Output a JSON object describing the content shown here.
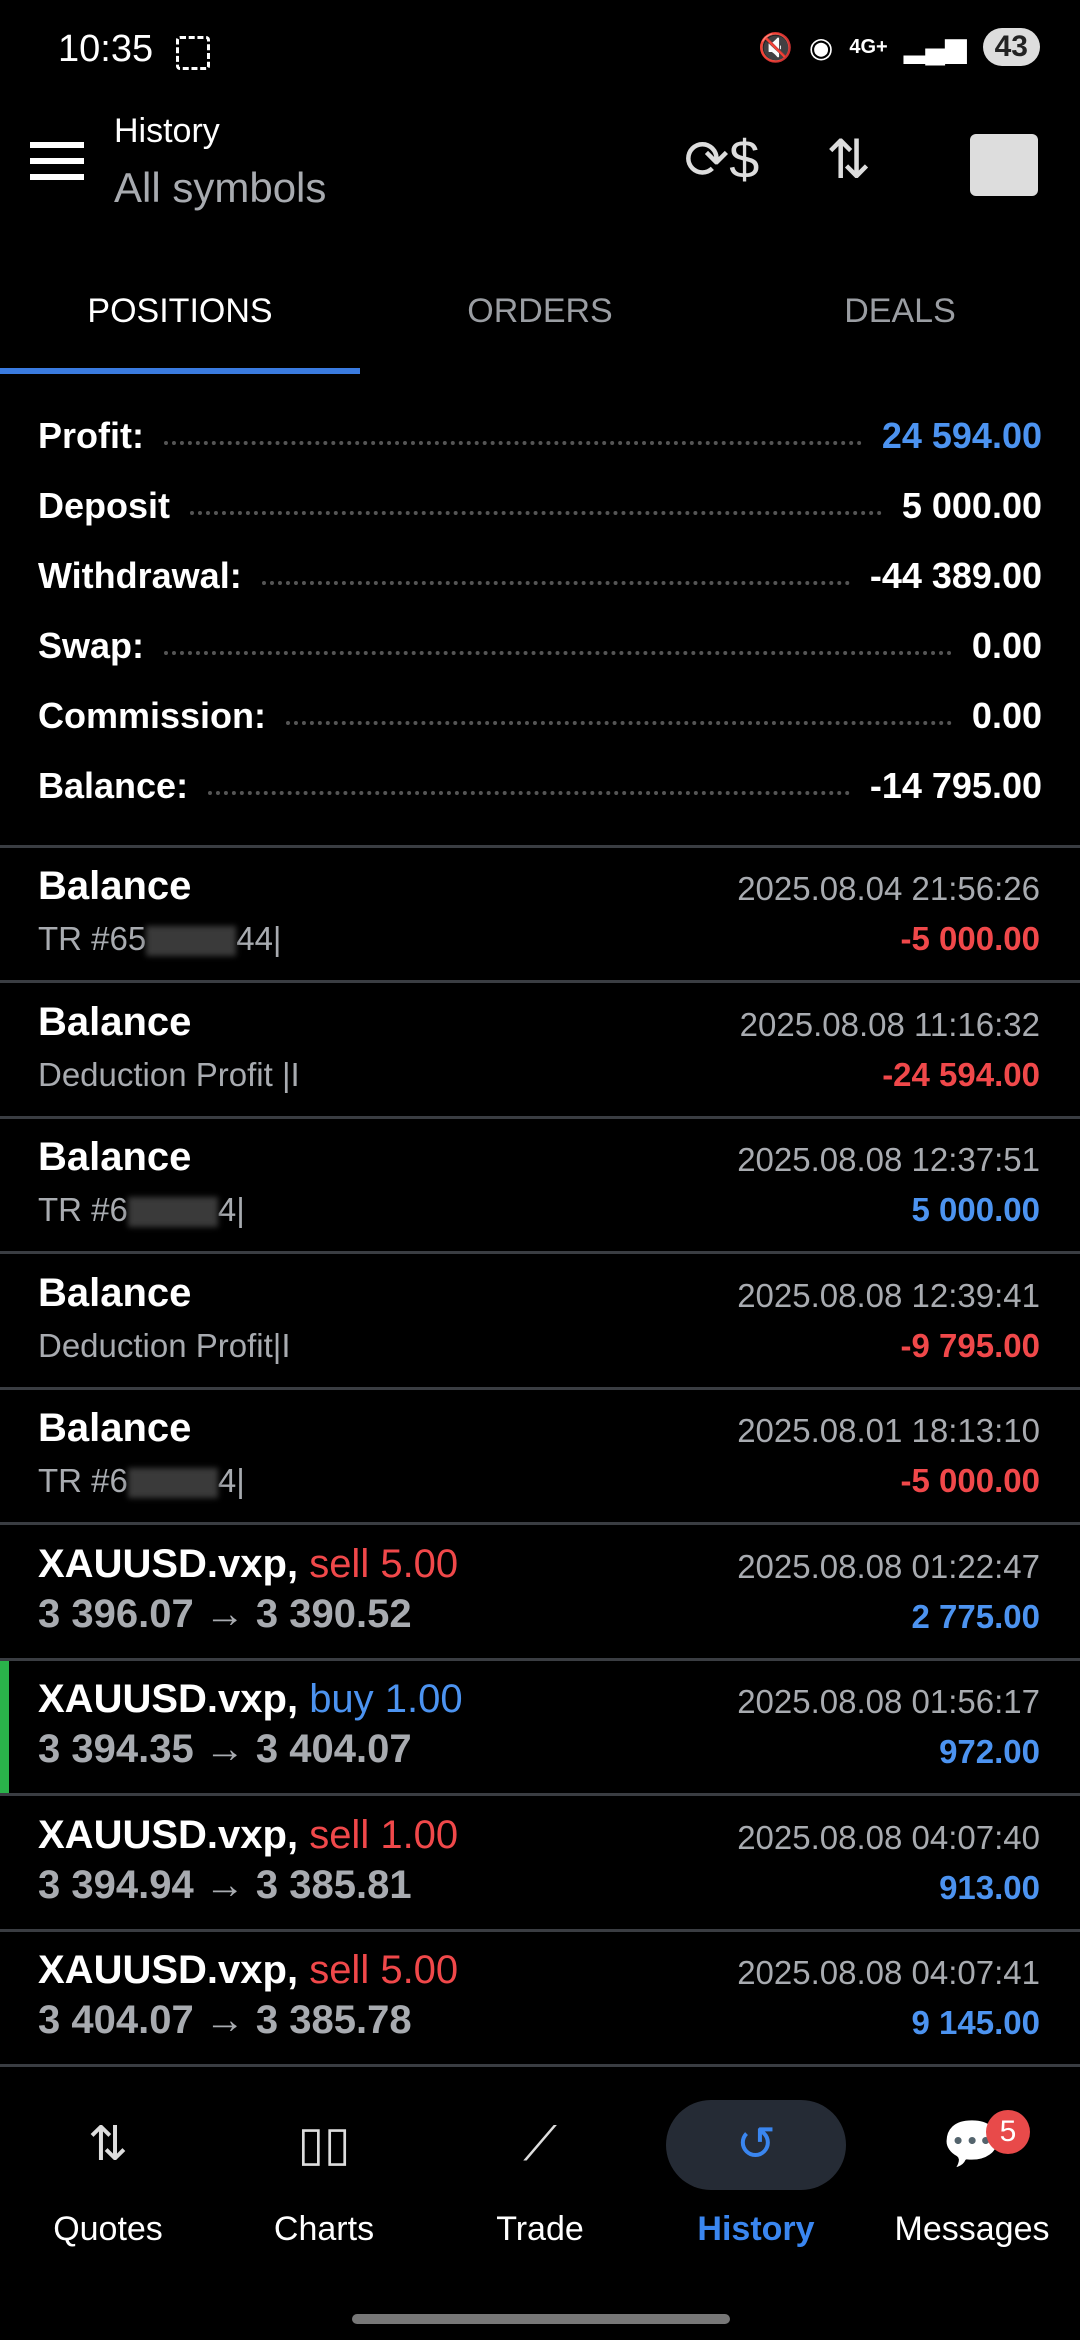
{
  "status": {
    "time": "10:35",
    "network": "4G+",
    "battery": "43"
  },
  "header": {
    "title": "History",
    "subtitle": "All symbols",
    "icons": [
      "menu-icon",
      "currency-exchange-icon",
      "sort-icon",
      "account-icon"
    ]
  },
  "tabs": [
    {
      "label": "POSITIONS",
      "active": true
    },
    {
      "label": "ORDERS"
    },
    {
      "label": "DEALS"
    }
  ],
  "summary": [
    {
      "label": "Profit:",
      "value": "24 594.00",
      "color": "#4c93f0"
    },
    {
      "label": "Deposit",
      "value": "5 000.00"
    },
    {
      "label": "Withdrawal:",
      "value": "-44 389.00"
    },
    {
      "label": "Swap:",
      "value": "0.00"
    },
    {
      "label": "Commission:",
      "value": "0.00"
    },
    {
      "label": "Balance:",
      "value": "-14 795.00"
    }
  ],
  "rows": [
    {
      "title": "Balance",
      "c1": "TR #65",
      "c2": "44|",
      "date": "2025.08.04 21:56:26",
      "value": "-5 000.00",
      "sign": "neg"
    },
    {
      "title": "Balance",
      "comment": "Deduction Profit |I",
      "date": "2025.08.08 11:16:32",
      "value": "-24 594.00",
      "sign": "neg"
    },
    {
      "title": "Balance",
      "c1": "TR #6",
      "c2": "4|",
      "date": "2025.08.08 12:37:51",
      "value": "5 000.00",
      "sign": "pos"
    },
    {
      "title": "Balance",
      "comment": "Deduction Profit|I",
      "date": "2025.08.08 12:39:41",
      "value": "-9 795.00",
      "sign": "neg"
    },
    {
      "title": "Balance",
      "c1": "TR #6",
      "c2": "4|",
      "date": "2025.08.01 18:13:10",
      "value": "-5 000.00",
      "sign": "neg"
    },
    {
      "symbol": "XAUUSD.vxp,",
      "side": "sell 5.00",
      "prices": "3 396.07 → 3 390.52",
      "date": "2025.08.08 01:22:47",
      "value": "2 775.00"
    },
    {
      "symbol": "XAUUSD.vxp,",
      "side": "buy 1.00",
      "prices": "3 394.35 → 3 404.07",
      "date": "2025.08.08 01:56:17",
      "value": "972.00",
      "selected": true
    },
    {
      "symbol": "XAUUSD.vxp,",
      "side": "sell 1.00",
      "prices": "3 394.94 → 3 385.81",
      "date": "2025.08.08 04:07:40",
      "value": "913.00"
    },
    {
      "symbol": "XAUUSD.vxp,",
      "side": "sell 5.00",
      "prices": "3 404.07 → 3 385.78",
      "date": "2025.08.08 04:07:41",
      "value": "9 145.00"
    }
  ],
  "nav": [
    {
      "label": "Quotes",
      "icon": "⇅"
    },
    {
      "label": "Charts",
      "icon": "▯▯"
    },
    {
      "label": "Trade",
      "icon": "⟋"
    },
    {
      "label": "History",
      "icon": "↺",
      "active": true
    },
    {
      "label": "Messages",
      "icon": "💬",
      "badge": "5"
    }
  ],
  "colors": {
    "accent": "#3a86f0",
    "profit": "#4c93f0",
    "loss": "#f0484a",
    "buy_marker": "#2ab24a"
  }
}
